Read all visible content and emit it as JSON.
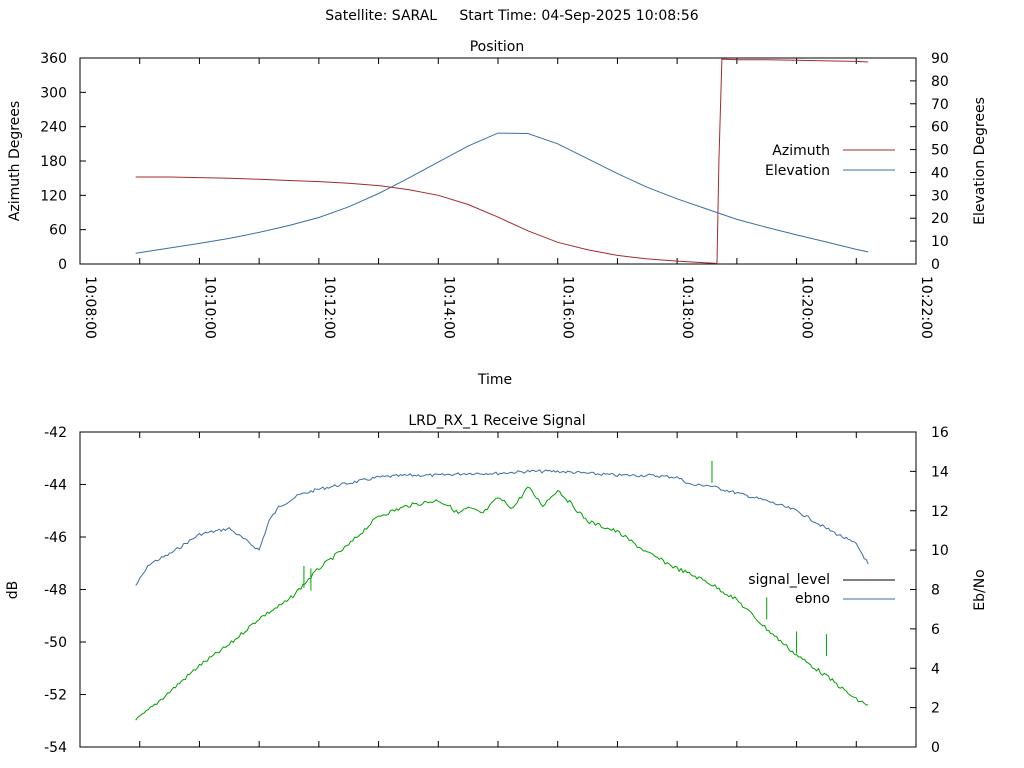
{
  "header": {
    "satellite": "Satellite: SARAL",
    "start_time": "Start Time: 04-Sep-2025 10:08:56"
  },
  "colors": {
    "azimuth": "#a52a2a",
    "elevation": "#3b6ea5",
    "signal_level": "#000000",
    "ebno_line": "#3b6ea5",
    "ebno_legend": "#3b6ea5",
    "signal_curve": "#00a000"
  },
  "chart_data": [
    {
      "type": "line",
      "title": "Position",
      "xlabel": "Time",
      "ylabel": "Azimuth Degrees",
      "y2label": "Elevation Degrees",
      "x_ticks": [
        "10:08:00",
        "10:10:00",
        "10:12:00",
        "10:14:00",
        "10:16:00",
        "10:18:00",
        "10:20:00",
        "10:22:00"
      ],
      "y_ticks": [
        "0",
        "60",
        "120",
        "180",
        "240",
        "300",
        "360"
      ],
      "y2_ticks": [
        "0",
        "10",
        "20",
        "30",
        "40",
        "50",
        "60",
        "70",
        "80",
        "90"
      ],
      "xlim": [
        "10:08:00",
        "10:22:00"
      ],
      "ylim": [
        0,
        360
      ],
      "y2lim": [
        0,
        90
      ],
      "legend": "right",
      "grid": false,
      "series": [
        {
          "name": "Azimuth",
          "axis": "left",
          "x": [
            "10:08:56",
            "10:09:30",
            "10:10:00",
            "10:10:30",
            "10:11:00",
            "10:11:30",
            "10:12:00",
            "10:12:30",
            "10:13:00",
            "10:13:30",
            "10:14:00",
            "10:14:30",
            "10:15:00",
            "10:15:30",
            "10:16:00",
            "10:16:30",
            "10:17:00",
            "10:17:30",
            "10:18:00",
            "10:18:30",
            "10:18:40",
            "10:18:42",
            "10:18:45",
            "10:19:00",
            "10:19:30",
            "10:20:00",
            "10:20:30",
            "10:21:00",
            "10:21:12"
          ],
          "y": [
            152,
            152,
            151,
            150,
            148,
            146,
            144,
            141,
            137,
            130,
            120,
            104,
            82,
            58,
            38,
            25,
            15,
            9,
            5,
            2,
            1,
            180,
            358,
            357,
            357,
            356,
            355,
            354,
            353
          ]
        },
        {
          "name": "Elevation",
          "axis": "right",
          "x": [
            "10:08:56",
            "10:09:30",
            "10:10:00",
            "10:10:30",
            "10:11:00",
            "10:11:30",
            "10:12:00",
            "10:12:30",
            "10:13:00",
            "10:13:30",
            "10:14:00",
            "10:14:30",
            "10:15:00",
            "10:15:30",
            "10:16:00",
            "10:16:30",
            "10:17:00",
            "10:17:30",
            "10:18:00",
            "10:18:30",
            "10:19:00",
            "10:19:30",
            "10:20:00",
            "10:20:30",
            "10:21:00",
            "10:21:12"
          ],
          "y": [
            4.7,
            7,
            9,
            11.2,
            13.8,
            16.8,
            20.3,
            25,
            30.8,
            37.5,
            44.5,
            51.5,
            57.2,
            57,
            52.5,
            46,
            39.5,
            33.5,
            28.5,
            24,
            19.5,
            16,
            12.7,
            9.6,
            6.4,
            5.3
          ]
        }
      ]
    },
    {
      "type": "line",
      "title": "LRD_RX_1 Receive Signal",
      "ylabel": "dB",
      "y2label": "Eb/No",
      "y_ticks": [
        "-54",
        "-52",
        "-50",
        "-48",
        "-46",
        "-44",
        "-42"
      ],
      "y2_ticks": [
        "0",
        "2",
        "4",
        "6",
        "8",
        "10",
        "12",
        "14",
        "16"
      ],
      "xlim": [
        "10:08:00",
        "10:22:00"
      ],
      "ylim": [
        -54,
        -42
      ],
      "y2lim": [
        0,
        16
      ],
      "legend": "right",
      "grid": false,
      "series": [
        {
          "name": "signal_level",
          "axis": "left",
          "x": [],
          "y": []
        },
        {
          "name": "ebno",
          "axis": "right",
          "x": [
            "10:08:56",
            "10:09:10",
            "10:09:30",
            "10:10:00",
            "10:10:30",
            "10:11:00",
            "10:11:10",
            "10:11:20",
            "10:11:40",
            "10:12:00",
            "10:12:30",
            "10:13:00",
            "10:13:30",
            "10:14:00",
            "10:14:30",
            "10:15:00",
            "10:15:30",
            "10:16:00",
            "10:16:30",
            "10:17:00",
            "10:17:30",
            "10:18:00",
            "10:18:15",
            "10:18:30",
            "10:19:00",
            "10:19:30",
            "10:20:00",
            "10:20:30",
            "10:21:00",
            "10:21:12"
          ],
          "y": [
            8.2,
            9.3,
            9.8,
            10.8,
            11.1,
            10,
            11.5,
            12.2,
            12.8,
            13.1,
            13.4,
            13.7,
            13.8,
            13.8,
            13.9,
            13.9,
            14,
            14,
            13.9,
            13.8,
            13.8,
            13.7,
            13.3,
            13.3,
            12.9,
            12.5,
            12,
            11.1,
            10.3,
            9.3
          ]
        },
        {
          "name": "",
          "axis": "left",
          "x": [
            "10:08:56",
            "10:09:15",
            "10:09:30",
            "10:10:00",
            "10:10:30",
            "10:11:00",
            "10:11:30",
            "10:11:50",
            "10:12:00",
            "10:12:30",
            "10:13:00",
            "10:13:30",
            "10:14:00",
            "10:14:10",
            "10:14:20",
            "10:14:30",
            "10:14:45",
            "10:15:00",
            "10:15:15",
            "10:15:30",
            "10:15:45",
            "10:16:00",
            "10:16:30",
            "10:17:00",
            "10:17:30",
            "10:18:00",
            "10:18:30",
            "10:19:00",
            "10:19:30",
            "10:20:00",
            "10:20:30",
            "10:21:00",
            "10:21:12"
          ],
          "y": [
            -53,
            -52.4,
            -51.9,
            -50.9,
            -50.1,
            -49.1,
            -48.4,
            -47.6,
            -47.2,
            -46.3,
            -45.2,
            -44.8,
            -44.6,
            -44.8,
            -45.1,
            -44.9,
            -45.1,
            -44.5,
            -44.9,
            -44.1,
            -44.8,
            -44.2,
            -45.4,
            -45.8,
            -46.6,
            -47.2,
            -47.7,
            -48.4,
            -49.5,
            -50.5,
            -51.3,
            -52.2,
            -52.4
          ]
        }
      ]
    }
  ]
}
